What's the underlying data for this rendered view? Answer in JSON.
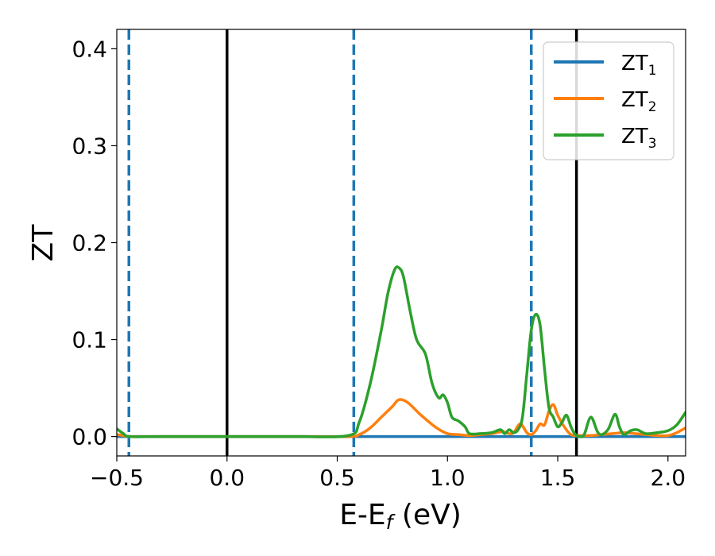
{
  "chart_data": {
    "type": "line",
    "xlabel": "E-E",
    "xlabel_sub": "f",
    "xlabel_unit": " (eV)",
    "ylabel": "ZT",
    "xlim": [
      -0.5,
      2.08
    ],
    "ylim": [
      -0.02,
      0.42
    ],
    "x_ticks": [
      -0.5,
      0.0,
      0.5,
      1.0,
      1.5,
      2.0
    ],
    "x_tick_labels": [
      "−0.5",
      "0.0",
      "0.5",
      "1.0",
      "1.5",
      "2.0"
    ],
    "y_ticks": [
      0.0,
      0.1,
      0.2,
      0.3,
      0.4
    ],
    "y_tick_labels": [
      "0.0",
      "0.1",
      "0.2",
      "0.3",
      "0.4"
    ],
    "grid": false,
    "legend_position": "top-right",
    "vertical_lines": [
      {
        "x": -0.445,
        "style": "dashed",
        "color": "#1f77b4"
      },
      {
        "x": 0.0,
        "style": "solid",
        "color": "#000000"
      },
      {
        "x": 0.575,
        "style": "dashed",
        "color": "#1f77b4"
      },
      {
        "x": 1.38,
        "style": "dashed",
        "color": "#1f77b4"
      },
      {
        "x": 1.585,
        "style": "solid",
        "color": "#000000"
      }
    ],
    "series": [
      {
        "name": "ZT",
        "name_sub": "1",
        "color": "#1f77b4",
        "x": [
          -0.5,
          0.0,
          0.5,
          1.0,
          1.5,
          2.08
        ],
        "y": [
          0.0,
          0.0,
          0.0,
          0.0,
          0.0,
          0.0
        ]
      },
      {
        "name": "ZT",
        "name_sub": "2",
        "color": "#ff7f0e",
        "x": [
          -0.5,
          -0.47,
          -0.44,
          -0.3,
          0.0,
          0.3,
          0.55,
          0.6,
          0.65,
          0.7,
          0.75,
          0.78,
          0.82,
          0.88,
          0.95,
          1.0,
          1.05,
          1.1,
          1.15,
          1.2,
          1.25,
          1.28,
          1.3,
          1.33,
          1.36,
          1.38,
          1.4,
          1.42,
          1.44,
          1.46,
          1.48,
          1.5,
          1.53,
          1.56,
          1.6,
          1.65,
          1.7,
          1.75,
          1.8,
          1.85,
          1.9,
          1.95,
          2.0,
          2.04,
          2.08
        ],
        "y": [
          0.002,
          0.001,
          0.0,
          0.0,
          0.0,
          0.0,
          0.0,
          0.002,
          0.009,
          0.02,
          0.031,
          0.038,
          0.035,
          0.022,
          0.009,
          0.003,
          0.002,
          0.001,
          0.002,
          0.003,
          0.005,
          0.003,
          0.004,
          0.013,
          0.004,
          0.002,
          0.006,
          0.013,
          0.012,
          0.026,
          0.033,
          0.022,
          0.01,
          0.002,
          0.001,
          0.001,
          0.002,
          0.003,
          0.004,
          0.003,
          0.002,
          0.001,
          0.001,
          0.004,
          0.009
        ]
      },
      {
        "name": "ZT",
        "name_sub": "3",
        "color": "#2ca02c",
        "x": [
          -0.5,
          -0.47,
          -0.44,
          -0.3,
          0.0,
          0.3,
          0.55,
          0.6,
          0.65,
          0.7,
          0.73,
          0.76,
          0.78,
          0.8,
          0.83,
          0.86,
          0.9,
          0.93,
          0.96,
          0.98,
          1.0,
          1.02,
          1.05,
          1.08,
          1.1,
          1.15,
          1.2,
          1.24,
          1.26,
          1.28,
          1.3,
          1.32,
          1.34,
          1.36,
          1.38,
          1.4,
          1.42,
          1.44,
          1.46,
          1.48,
          1.5,
          1.52,
          1.54,
          1.56,
          1.58,
          1.6,
          1.62,
          1.65,
          1.68,
          1.7,
          1.73,
          1.76,
          1.78,
          1.8,
          1.83,
          1.86,
          1.9,
          1.95,
          2.0,
          2.04,
          2.08
        ],
        "y": [
          0.008,
          0.003,
          0.0,
          0.0,
          0.0,
          0.0,
          0.001,
          0.015,
          0.055,
          0.11,
          0.148,
          0.172,
          0.174,
          0.165,
          0.13,
          0.1,
          0.085,
          0.055,
          0.04,
          0.043,
          0.035,
          0.02,
          0.016,
          0.01,
          0.003,
          0.003,
          0.004,
          0.007,
          0.003,
          0.007,
          0.004,
          0.007,
          0.02,
          0.065,
          0.11,
          0.126,
          0.115,
          0.07,
          0.03,
          0.02,
          0.01,
          0.015,
          0.022,
          0.01,
          0.002,
          0.0,
          0.002,
          0.02,
          0.005,
          0.002,
          0.008,
          0.023,
          0.01,
          0.002,
          0.006,
          0.007,
          0.003,
          0.004,
          0.006,
          0.012,
          0.025
        ]
      }
    ]
  }
}
